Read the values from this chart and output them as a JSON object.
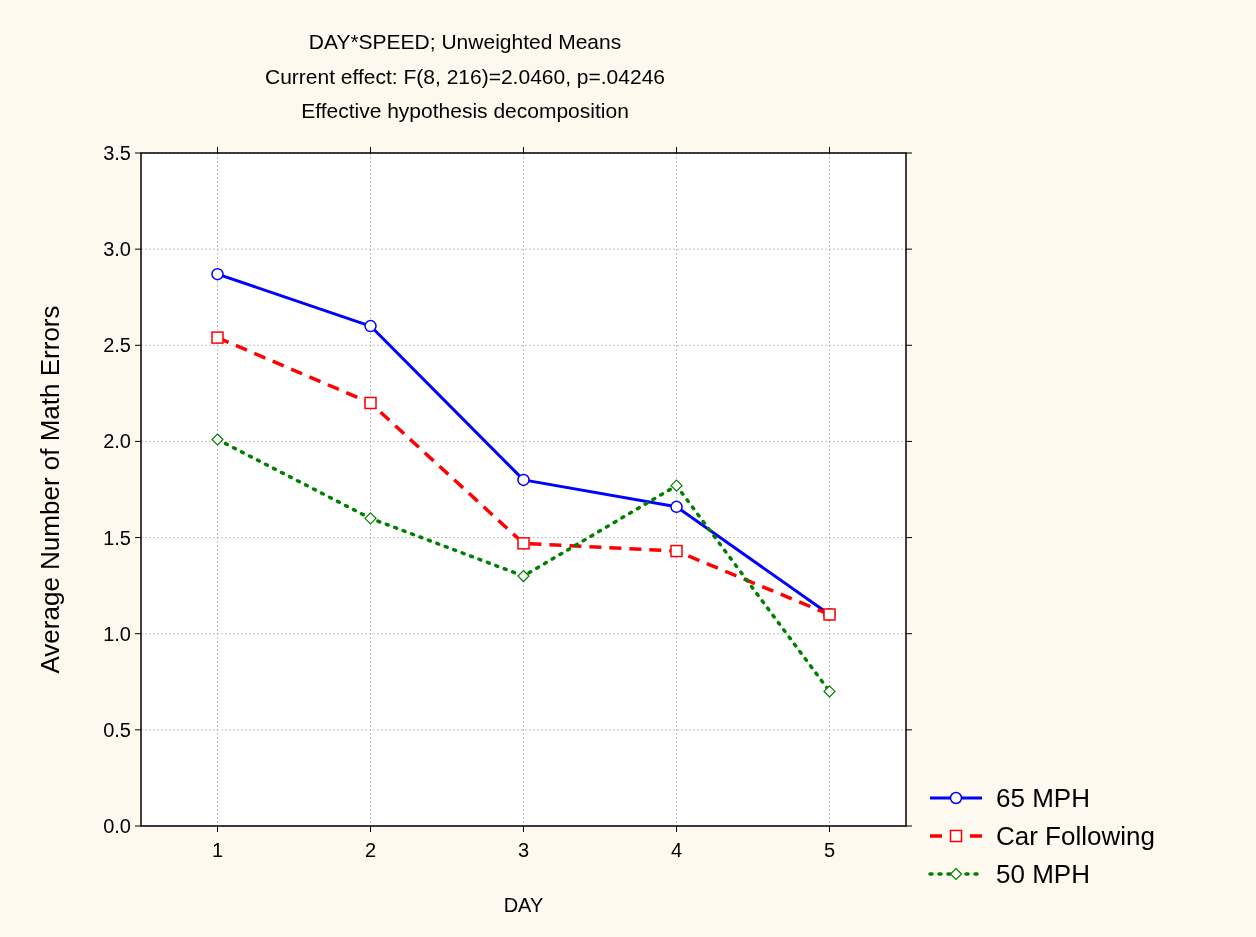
{
  "chart_data": {
    "type": "line",
    "title": "DAY*SPEED; Unweighted Means",
    "subtitle": "Current effect: F(8, 216)=2.0460, p=.04246\nEffective hypothesis decomposition",
    "xlabel": "DAY",
    "ylabel": "Average Number of Math Errors",
    "categories": [
      "1",
      "2",
      "3",
      "4",
      "5"
    ],
    "ylim": [
      0,
      3.5
    ],
    "yticks": [
      {
        "value": 0,
        "label": "0.0"
      },
      {
        "value": 0.5,
        "label": "0.5"
      },
      {
        "value": 1,
        "label": "1.0"
      },
      {
        "value": 1.5,
        "label": "1.5"
      },
      {
        "value": 2,
        "label": "2.0"
      },
      {
        "value": 2.5,
        "label": "2.5"
      },
      {
        "value": 3,
        "label": "3.0"
      },
      {
        "value": 3.5,
        "label": "3.5"
      }
    ],
    "grid": true,
    "legend": "bottom right",
    "series": [
      {
        "name": "65 MPH",
        "color": "#0000ff",
        "marker": "circle",
        "line_style": "solid",
        "values": [
          2.87,
          2.6,
          1.8,
          1.66,
          1.1
        ]
      },
      {
        "name": "Car Following",
        "color": "#ff0000",
        "marker": "square",
        "line_style": "dashed",
        "values": [
          2.54,
          2.2,
          1.47,
          1.43,
          1.1
        ]
      },
      {
        "name": "50 MPH",
        "color": "#008000",
        "marker": "diamond",
        "line_style": "dotted",
        "values": [
          2.01,
          1.6,
          1.3,
          1.77,
          0.7
        ]
      }
    ]
  }
}
